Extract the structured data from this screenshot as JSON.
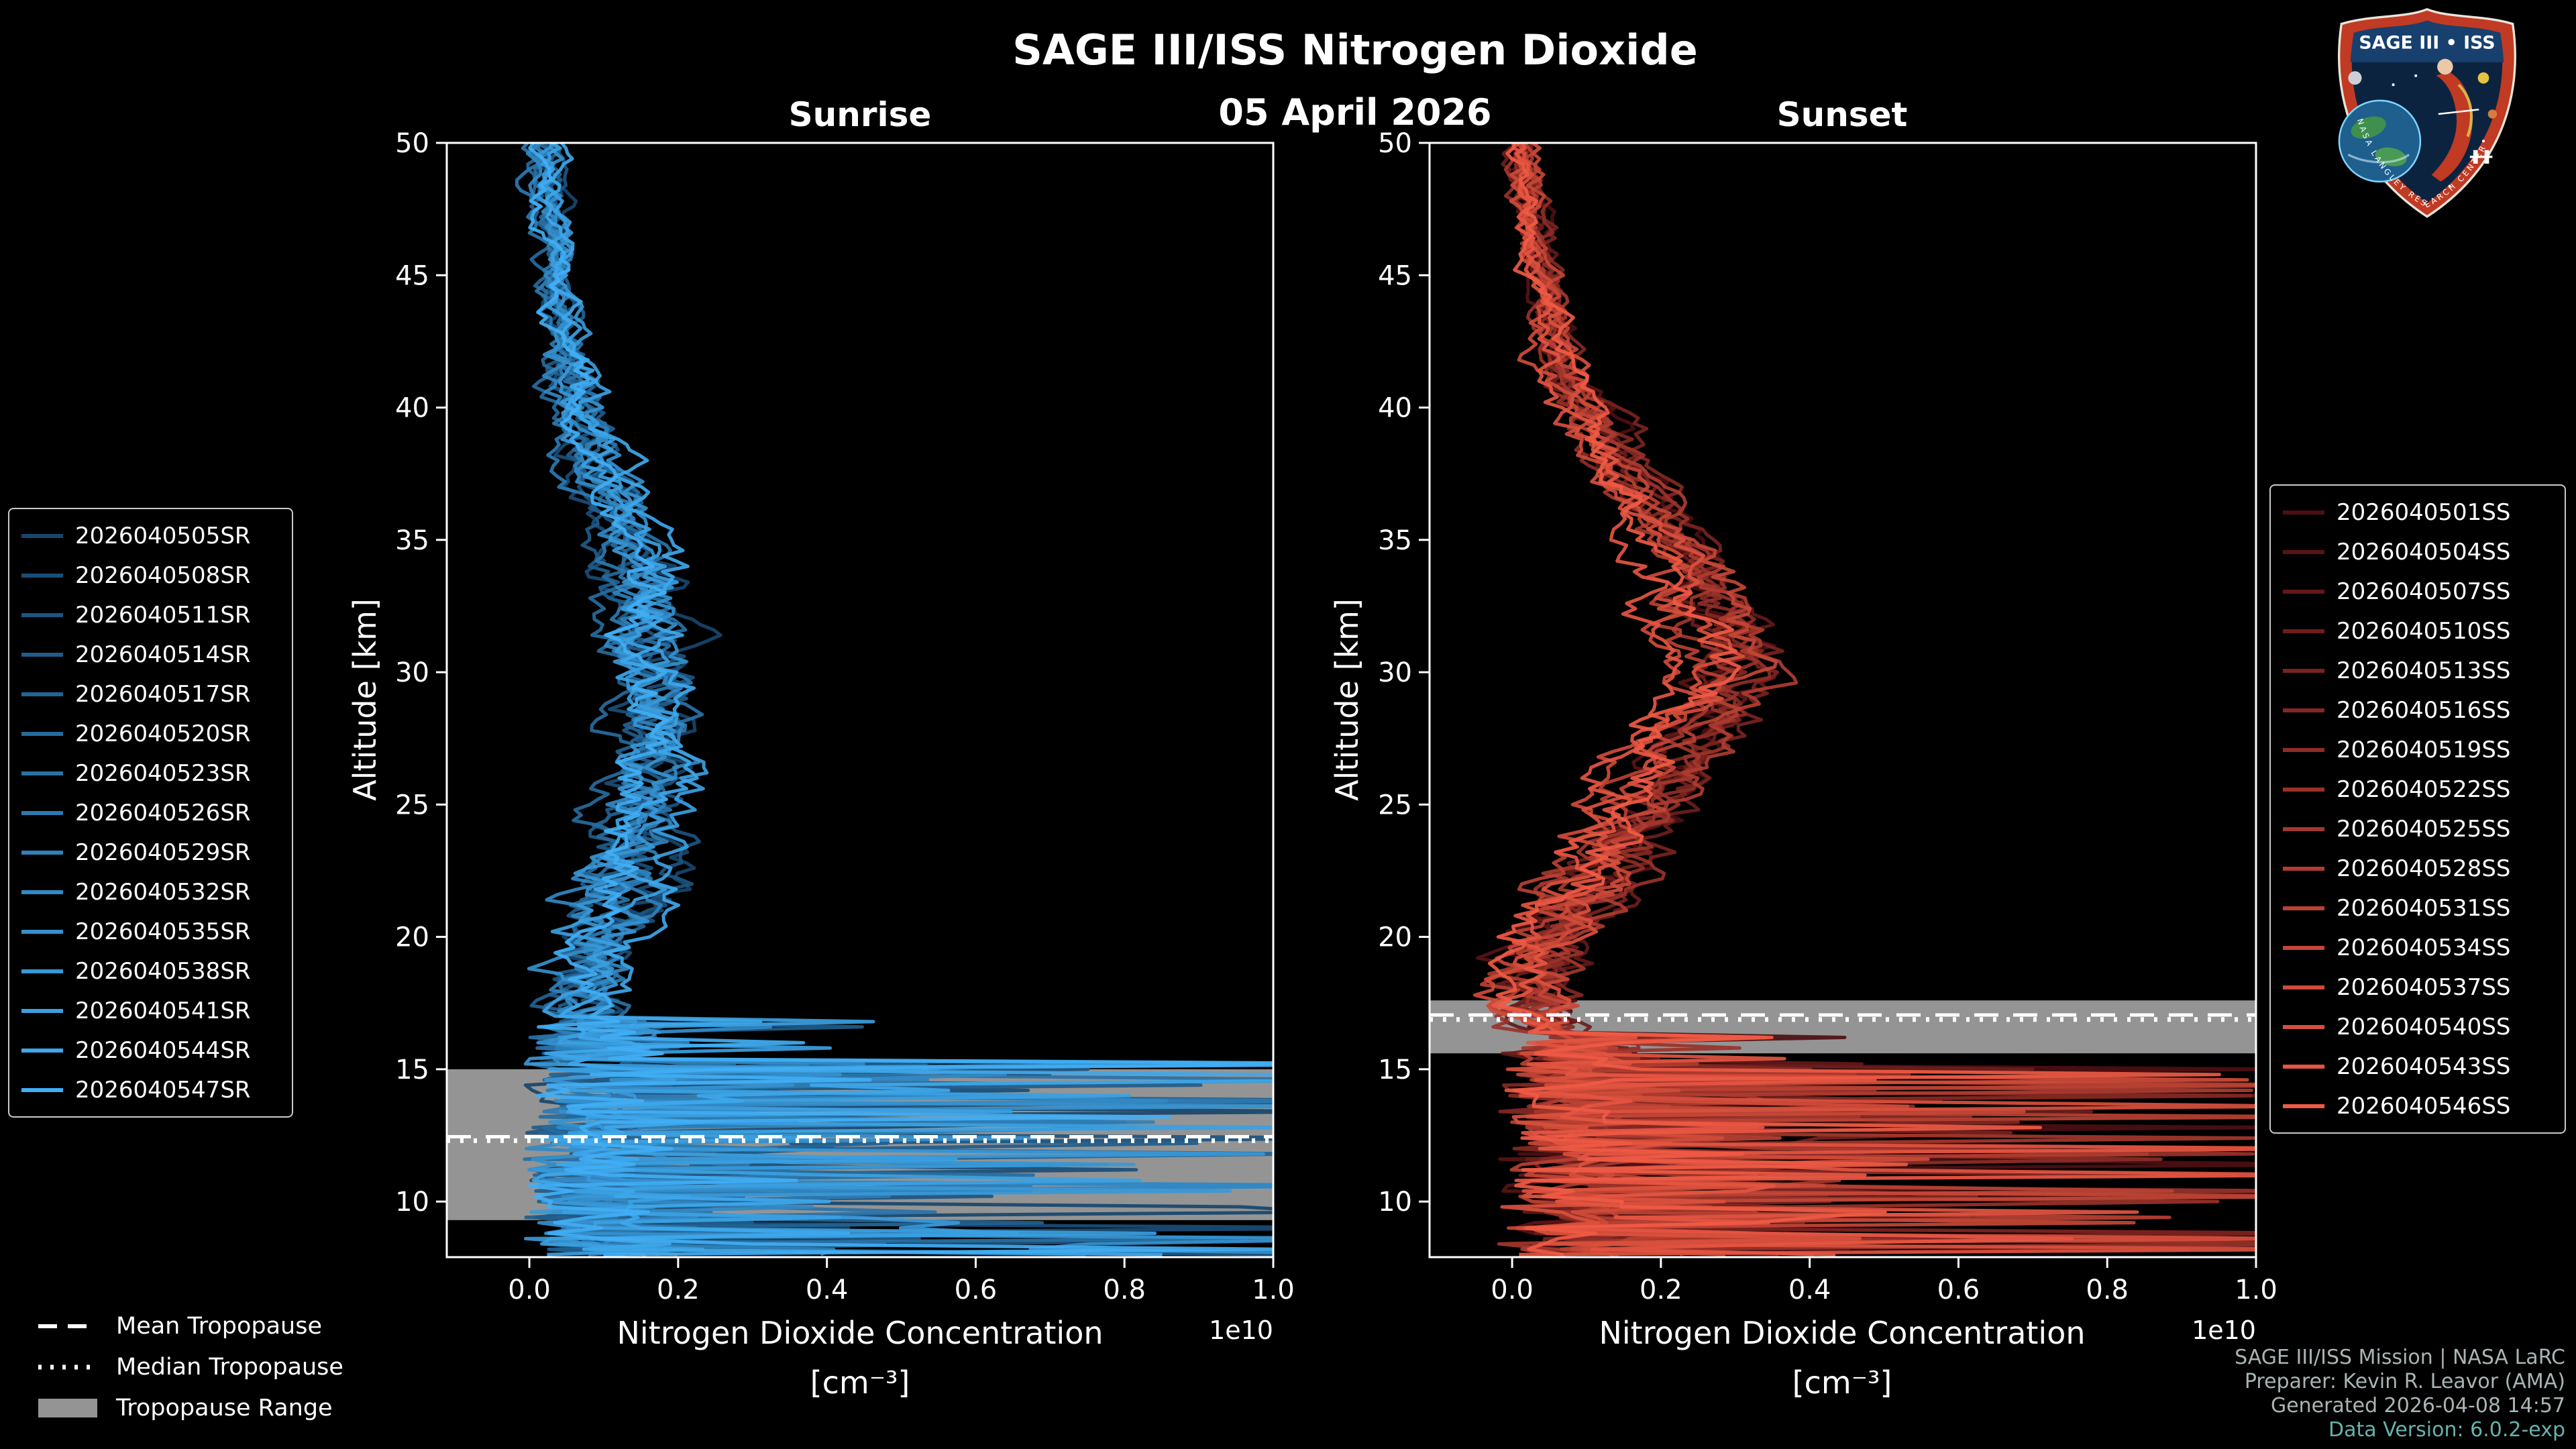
{
  "title": "SAGE III/ISS Nitrogen Dioxide",
  "date": "05 April 2026",
  "panels": {
    "sunrise_heading": "Sunrise",
    "sunset_heading": "Sunset"
  },
  "axes": {
    "ylabel": "Altitude [km]",
    "xlabel_line1": "Nitrogen Dioxide Concentration",
    "xlabel_line2": "[cm⁻³]",
    "offset_label": "1e10"
  },
  "tropopause_legend": {
    "mean_label": "Mean Tropopause",
    "median_label": "Median Tropopause",
    "range_label": "Tropopause Range"
  },
  "credits": [
    "SAGE III/ISS Mission | NASA LaRC",
    "Preparer: Kevin R. Leavor (AMA)",
    "Generated 2026-04-08 14:57",
    "Data Version: 6.0.2-exp"
  ],
  "logo": {
    "title": "SAGE III • ISS",
    "rim_text": "NASA LANGLEY RESEARCH CENTER"
  },
  "colors": {
    "background": "#000000",
    "frame": "#ffffff",
    "tropopause_band": "#949494",
    "tropopause_line": "#ffffff",
    "credits_text": "#a9b4b4",
    "version_text": "#69b0ac",
    "sunrise_cmap": [
      "#17456d",
      "#41aef4"
    ],
    "sunset_cmap": [
      "#4d0f12",
      "#ef5a44"
    ]
  },
  "chart_data": [
    {
      "type": "line",
      "title": "Sunrise",
      "xlabel": "Nitrogen Dioxide Concentration [cm⁻³]",
      "ylabel": "Altitude [km]",
      "x_multiplier": "1e10",
      "xlim": [
        -0.111,
        1.0
      ],
      "ylim": [
        7.9,
        50
      ],
      "xticks": [
        0.0,
        0.2,
        0.4,
        0.6,
        0.8,
        1.0
      ],
      "yticks": [
        10,
        15,
        20,
        25,
        30,
        35,
        40,
        45,
        50
      ],
      "legend_position": "outside-left",
      "grid": false,
      "series": [
        "2026040505SR",
        "2026040508SR",
        "2026040511SR",
        "2026040514SR",
        "2026040517SR",
        "2026040520SR",
        "2026040523SR",
        "2026040526SR",
        "2026040529SR",
        "2026040532SR",
        "2026040535SR",
        "2026040538SR",
        "2026040541SR",
        "2026040544SR",
        "2026040547SR"
      ],
      "mean_profile": {
        "altitude_km": [
          50,
          46,
          42,
          40,
          38,
          36,
          34,
          32,
          30,
          28,
          26,
          24,
          22,
          20,
          18,
          17
        ],
        "concentration_1e10": [
          0.02,
          0.03,
          0.05,
          0.07,
          0.09,
          0.12,
          0.14,
          0.15,
          0.16,
          0.17,
          0.16,
          0.14,
          0.12,
          0.09,
          0.07,
          0.08
        ]
      },
      "chaos_below_km": 16.8,
      "chaos_full_below_km": 15.2,
      "chaos_max_1e10": 1.25,
      "tropopause": {
        "mean_km": 12.45,
        "median_km": 12.3,
        "range_km": [
          9.3,
          15.0
        ]
      }
    },
    {
      "type": "line",
      "title": "Sunset",
      "xlabel": "Nitrogen Dioxide Concentration [cm⁻³]",
      "ylabel": "Altitude [km]",
      "x_multiplier": "1e10",
      "xlim": [
        -0.111,
        1.0
      ],
      "ylim": [
        7.9,
        50
      ],
      "xticks": [
        0.0,
        0.2,
        0.4,
        0.6,
        0.8,
        1.0
      ],
      "yticks": [
        10,
        15,
        20,
        25,
        30,
        35,
        40,
        45,
        50
      ],
      "legend_position": "outside-right",
      "grid": false,
      "series": [
        "2026040501SS",
        "2026040504SS",
        "2026040507SS",
        "2026040510SS",
        "2026040513SS",
        "2026040516SS",
        "2026040519SS",
        "2026040522SS",
        "2026040525SS",
        "2026040528SS",
        "2026040531SS",
        "2026040534SS",
        "2026040537SS",
        "2026040540SS",
        "2026040543SS",
        "2026040546SS"
      ],
      "mean_profile": {
        "altitude_km": [
          50,
          46,
          42,
          40,
          38,
          36,
          34,
          32,
          30,
          28,
          26,
          24,
          22,
          20,
          18.5,
          17.5
        ],
        "concentration_1e10": [
          0.01,
          0.03,
          0.06,
          0.09,
          0.13,
          0.18,
          0.23,
          0.26,
          0.28,
          0.24,
          0.19,
          0.14,
          0.09,
          0.05,
          0.03,
          0.04
        ]
      },
      "chaos_below_km": 16.2,
      "chaos_full_below_km": 15.0,
      "chaos_max_1e10": 1.2,
      "tropopause": {
        "mean_km": 17.05,
        "median_km": 16.88,
        "range_km": [
          15.6,
          17.6
        ]
      }
    }
  ]
}
